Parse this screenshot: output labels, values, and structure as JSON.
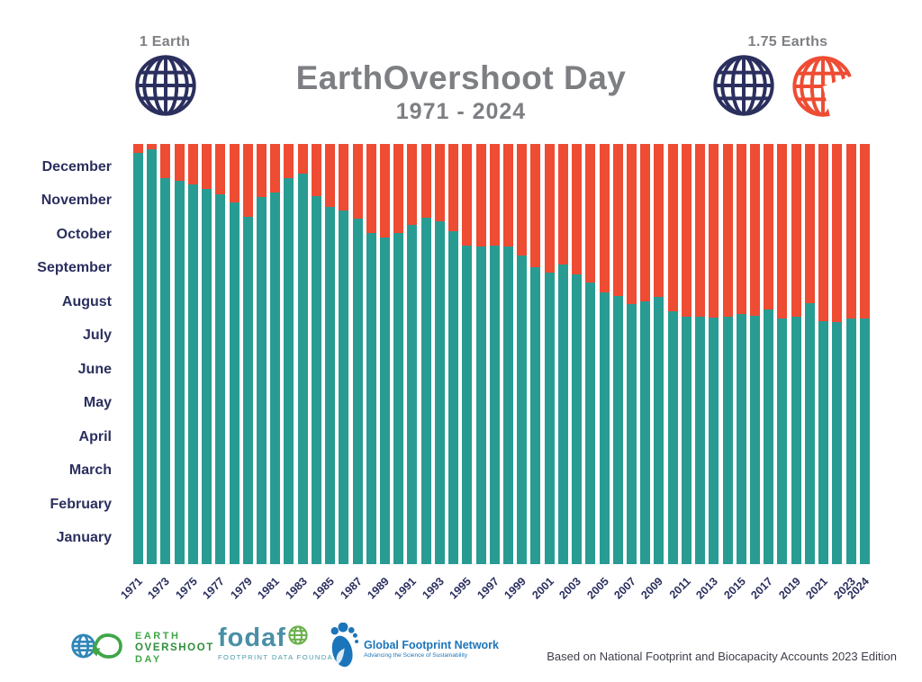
{
  "header": {
    "left_label": "1 Earth",
    "right_label": "1.75 Earths",
    "title": "EarthOvershoot Day",
    "subtitle": "1971 - 2024"
  },
  "icons": {
    "left": "globe-icon",
    "right_full": "globe-icon",
    "right_partial": "three-quarter-globe-icon",
    "footer": [
      "earth-overshoot-day-logo",
      "fodafo-globe-icon",
      "footprint-leaf-icon"
    ]
  },
  "chart_data": {
    "type": "bar",
    "stacked": true,
    "title": "EarthOvershoot Day",
    "subtitle": "1971 - 2024",
    "ylabel": "",
    "xlabel": "",
    "grid": false,
    "legend": "none",
    "y_axis_months": [
      "December",
      "November",
      "October",
      "September",
      "August",
      "July",
      "June",
      "May",
      "April",
      "March",
      "February",
      "January"
    ],
    "x_tick_years": [
      1971,
      1973,
      1975,
      1977,
      1979,
      1981,
      1983,
      1985,
      1987,
      1989,
      1991,
      1993,
      1995,
      1997,
      1999,
      2001,
      2003,
      2005,
      2007,
      2009,
      2011,
      2013,
      2015,
      2017,
      2019,
      2021,
      2023,
      2024
    ],
    "series_colors": {
      "within_budget": "#289c93",
      "overshoot": "#ee4c33"
    },
    "days_in_year": 365,
    "years": [
      1971,
      1972,
      1973,
      1974,
      1975,
      1976,
      1977,
      1978,
      1979,
      1980,
      1981,
      1982,
      1983,
      1984,
      1985,
      1986,
      1987,
      1988,
      1989,
      1990,
      1991,
      1992,
      1993,
      1994,
      1995,
      1996,
      1997,
      1998,
      1999,
      2000,
      2001,
      2002,
      2003,
      2004,
      2005,
      2006,
      2007,
      2008,
      2009,
      2010,
      2011,
      2012,
      2013,
      2014,
      2015,
      2016,
      2017,
      2018,
      2019,
      2020,
      2021,
      2022,
      2023,
      2024
    ],
    "overshoot_dates": [
      "Dec 23",
      "Dec 26",
      "Dec 1",
      "Nov 29",
      "Nov 26",
      "Nov 22",
      "Nov 17",
      "Nov 10",
      "Oct 29",
      "Nov 15",
      "Nov 19",
      "Dec 1",
      "Dec 5",
      "Nov 16",
      "Nov 6",
      "Nov 3",
      "Oct 27",
      "Oct 15",
      "Oct 11",
      "Oct 15",
      "Oct 22",
      "Oct 28",
      "Oct 25",
      "Oct 16",
      "Oct 4",
      "Oct 3",
      "Oct 4",
      "Oct 3",
      "Sep 25",
      "Sep 15",
      "Sep 10",
      "Sep 17",
      "Sep 9",
      "Sep 2",
      "Aug 24",
      "Aug 21",
      "Aug 14",
      "Aug 16",
      "Aug 20",
      "Aug 8",
      "Aug 3",
      "Aug 3",
      "Aug 2",
      "Aug 3",
      "Aug 5",
      "Aug 4",
      "Aug 9",
      "Aug 1",
      "Aug 3",
      "Aug 15",
      "Jul 30",
      "Jul 29",
      "Aug 1",
      "Aug 1"
    ],
    "overshoot_day_of_year": [
      357,
      360,
      335,
      333,
      330,
      326,
      321,
      314,
      302,
      319,
      323,
      335,
      339,
      320,
      310,
      307,
      300,
      288,
      284,
      288,
      295,
      301,
      298,
      289,
      277,
      276,
      277,
      276,
      268,
      258,
      253,
      260,
      252,
      245,
      236,
      233,
      226,
      228,
      232,
      220,
      215,
      215,
      214,
      215,
      217,
      216,
      221,
      213,
      215,
      227,
      211,
      210,
      213,
      213
    ]
  },
  "footer": {
    "logo_eod": {
      "line1": "EARTH",
      "line2": "OVERSHOOT",
      "line3": "DAY"
    },
    "logo_fodafo": {
      "name": "fodafo",
      "subtitle": "FOOTPRINT DATA FOUNDATION"
    },
    "logo_gfn": {
      "name": "Global Footprint Network",
      "subtitle": "Advancing the Science of Sustainability"
    },
    "attribution": "Based on National Footprint and Biocapacity Accounts 2023 Edition"
  }
}
